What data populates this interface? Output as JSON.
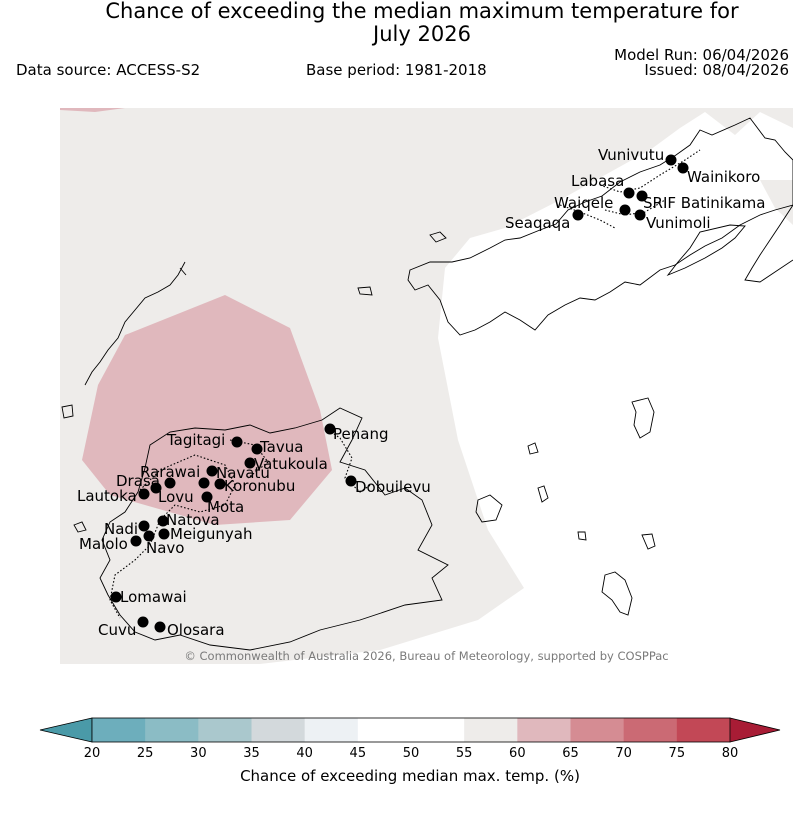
{
  "header": {
    "title_line1": "Chance of exceeding the median maximum temperature for",
    "title_line2": "July 2026",
    "data_source": "Data source: ACCESS-S2",
    "base_period": "Base period: 1981-2018",
    "model_run": "Model Run: 06/04/2026",
    "issued": "Issued: 08/04/2026"
  },
  "map": {
    "copyright": "© Commonwealth of Australia 2026, Bureau of Meteorology, supported by COSPPac",
    "colors": {
      "band_55_60": "#eeecea",
      "band_60_65": "#e0b8bd",
      "station_dot": "#000000",
      "coastline": "#000000"
    },
    "stations": [
      {
        "name": "Vunivutu"
      },
      {
        "name": "Wainikoro"
      },
      {
        "name": "Labasa"
      },
      {
        "name": "Waiqele"
      },
      {
        "name": "SRIF Batinikama"
      },
      {
        "name": "Seaqaqa"
      },
      {
        "name": "Vunimoli"
      },
      {
        "name": "Penang"
      },
      {
        "name": "Tagitagi"
      },
      {
        "name": "Tavua"
      },
      {
        "name": "Vatukoula"
      },
      {
        "name": "Rarawai"
      },
      {
        "name": "Navatu"
      },
      {
        "name": "Koronubu"
      },
      {
        "name": "Drasa"
      },
      {
        "name": "Lautoka"
      },
      {
        "name": "Lovu"
      },
      {
        "name": "Mota"
      },
      {
        "name": "Dobuilevu"
      },
      {
        "name": "Natova"
      },
      {
        "name": "Nadi"
      },
      {
        "name": "Meigunyah"
      },
      {
        "name": "Malolo"
      },
      {
        "name": "Navo"
      },
      {
        "name": "Lomawai"
      },
      {
        "name": "Cuvu"
      },
      {
        "name": "Olosara"
      }
    ]
  },
  "colorbar": {
    "label": "Chance of exceeding median max. temp. (%)",
    "ticks": [
      "20",
      "25",
      "30",
      "35",
      "40",
      "45",
      "50",
      "55",
      "60",
      "65",
      "70",
      "75",
      "80"
    ],
    "colors": {
      "below_20": "#4a9aa8",
      "b20_25": "#6daebc",
      "b25_30": "#8bbcc5",
      "b30_35": "#aac8cd",
      "b35_40": "#d3d9dc",
      "b40_45": "#edf1f4",
      "b45_50": "#ffffff",
      "b50_55": "#ffffff",
      "b55_60": "#eeecea",
      "b60_65": "#e0b8bd",
      "b65_70": "#d58c93",
      "b70_75": "#cb6a74",
      "b75_80": "#c24856",
      "above_80": "#a81c35"
    }
  }
}
